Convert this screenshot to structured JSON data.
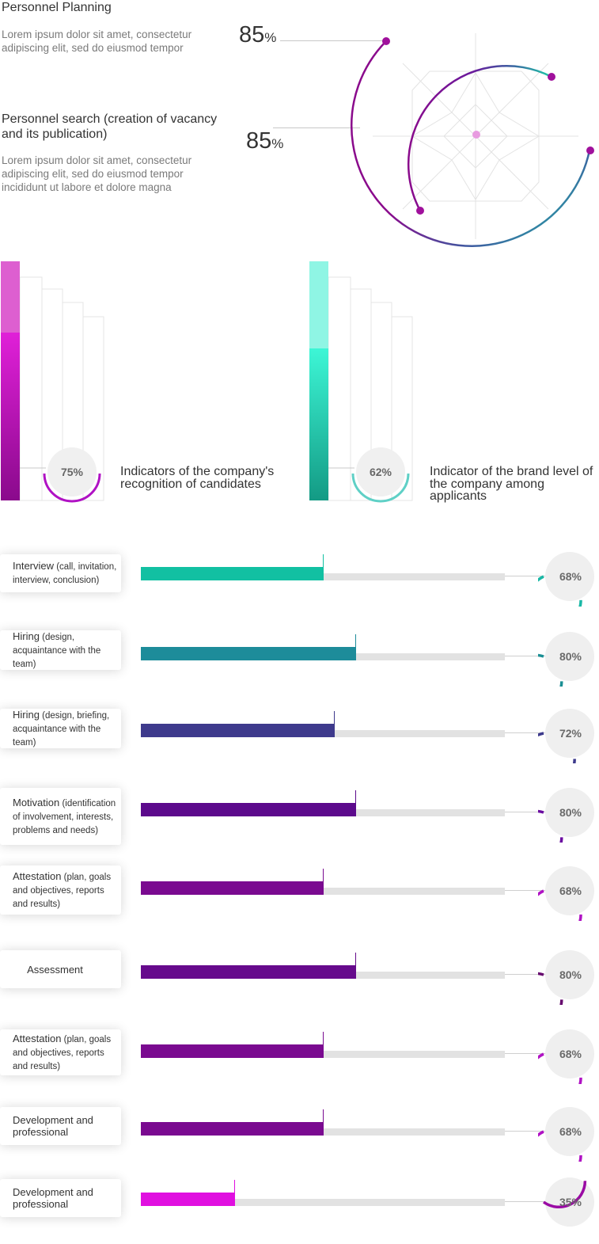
{
  "header": {
    "title": "Personnel Planning",
    "desc1": "Lorem ipsum dolor sit amet, consectetur adipiscing elit, sed do eiusmod tempor",
    "subtitle": "Personnel search (creation of vacancy and its publication)",
    "desc2": "Lorem ipsum dolor sit amet, consectetur adipiscing elit, sed do eiusmod tempor incididunt ut labore et dolore magna",
    "value1": "85",
    "value2": "85",
    "pct_symbol": "%"
  },
  "colors": {
    "magenta": "#e020d8",
    "purple": "#8a0a8c",
    "teal": "#1ec9a8",
    "teal_dark": "#159a86",
    "navy": "#3d3a8c",
    "grid": "#e6e6e6"
  },
  "columns": [
    {
      "percent": "75%",
      "value": 75,
      "label": "Indicators of the company's recognition of candidates",
      "top_color": "#e6e6e6",
      "bottom_color": "#8a0a8c"
    },
    {
      "percent": "62%",
      "value": 62,
      "label": "Indicator of the brand level of the company among applicants",
      "top_color": "#e6e6e6",
      "bottom_color": "#159a86"
    }
  ],
  "chart_data": {
    "type": "bar",
    "orientation": "horizontal",
    "categories": [
      "Interview (call, invitation, interview, conclusion)",
      "Hiring (design, acquaintance with the team)",
      "Hiring (design, briefing, acquaintance with the team)",
      "Motivation (identification of involvement, interests, problems and needs)",
      "Attestation (plan, goals and objectives, reports and results)",
      "Assessment",
      "Attestation (plan, goals and objectives, reports and results)",
      "Development and professional",
      "Development and professional"
    ],
    "values": [
      68,
      80,
      72,
      80,
      68,
      80,
      68,
      68,
      35
    ],
    "ylim": [
      0,
      100
    ]
  },
  "bars": [
    {
      "main": "Interview",
      "note": " (call, invitation, interview, conclusion)",
      "percent": "68%",
      "value": 68,
      "color": "#12c0a2",
      "ring_color": "#1ab8a6"
    },
    {
      "main": "Hiring",
      "note": " (design, acquaintance with the team)",
      "percent": "80%",
      "value": 80,
      "color": "#1d8c9a",
      "ring_color": "#1b8f94"
    },
    {
      "main": "Hiring",
      "note": " (design, briefing, acquaintance with the team)",
      "percent": "72%",
      "value": 72,
      "color": "#3e3a8c",
      "ring_color": "#3d3a8c"
    },
    {
      "main": "Motivation",
      "note": " (identification of involvement, interests, problems and needs)",
      "percent": "80%",
      "value": 80,
      "color": "#5c0a8c",
      "ring_color": "#6a0aa0"
    },
    {
      "main": "Attestation",
      "note": " (plan, goals and objectives, reports and results)",
      "percent": "68%",
      "value": 68,
      "color": "#7a0a90",
      "ring_color": "#b012c4"
    },
    {
      "main": "Assessment",
      "note": "",
      "percent": "80%",
      "value": 80,
      "color": "#660a8c",
      "ring_color": "#66086e"
    },
    {
      "main": "Attestation",
      "note": " (plan, goals and objectives, reports and results)",
      "percent": "68%",
      "value": 68,
      "color": "#7a0a90",
      "ring_color": "#b012c4"
    },
    {
      "main": "Development and professional",
      "note": "",
      "percent": "68%",
      "value": 68,
      "color": "#7a0a90",
      "ring_color": "#b012c4"
    },
    {
      "main": "Development and professional",
      "note": "",
      "percent": "35%",
      "value": 35,
      "color": "#e010e0",
      "ring_color": "#9a0aa4"
    }
  ]
}
